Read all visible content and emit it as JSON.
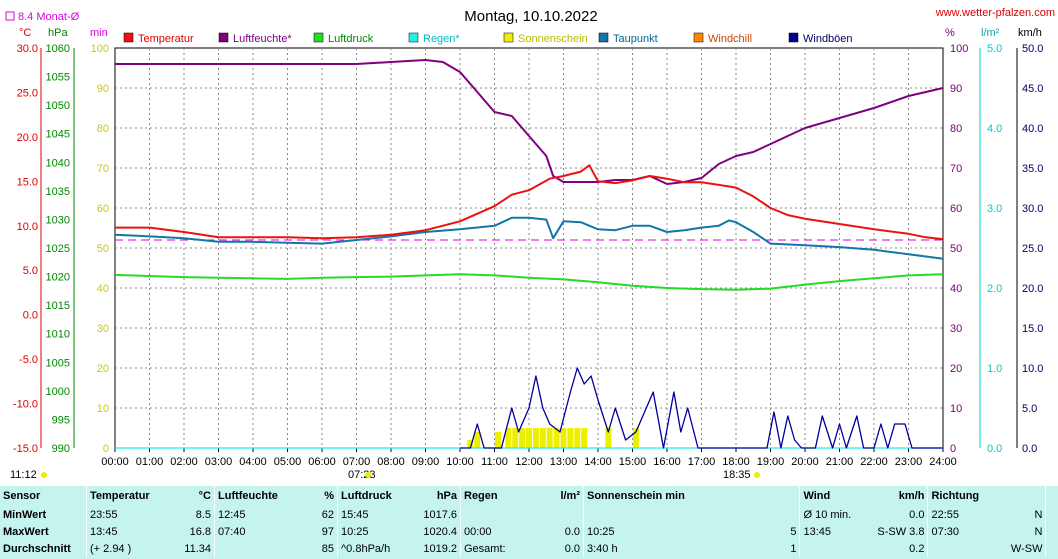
{
  "title": "Montag, 10.10.2022",
  "site": "www.wetter-pfalzen.com",
  "monthavg": "8.4 Monat-Ø",
  "units": {
    "c": "°C",
    "hpa": "hPa",
    "min": "min",
    "pct": "%",
    "lm2": "l/m²",
    "kmh": "km/h"
  },
  "sunrise": "07:23",
  "sunset": "18:35",
  "time_left": "11:12",
  "legend": [
    {
      "label": "Temperatur",
      "color": "#ee1111",
      "text_color": "#dd0000"
    },
    {
      "label": "Luftfeuchte*",
      "color": "#800080",
      "text_color": "#800080"
    },
    {
      "label": "Luftdruck",
      "color": "#22dd22",
      "text_color": "#008800"
    },
    {
      "label": "Regen*",
      "color": "#22eeee",
      "text_color": "#00bbbb"
    },
    {
      "label": "Sonnenschein",
      "color": "#eeee00",
      "text_color": "#bbbb00"
    },
    {
      "label": "Taupunkt",
      "color": "#1177aa",
      "text_color": "#006699"
    },
    {
      "label": "Windchill",
      "color": "#ff8800",
      "text_color": "#cc4400"
    },
    {
      "label": "Windböen",
      "color": "#000099",
      "text_color": "#000066"
    }
  ],
  "axes": {
    "temp": {
      "ticks": [
        "30.0",
        "25.0",
        "20.0",
        "15.0",
        "10.0",
        "5.0",
        "0.0",
        "-5.0",
        "-10.0",
        "-15.0"
      ],
      "min": -15,
      "max": 30,
      "color": "#dd0000"
    },
    "pressure": {
      "ticks": [
        "1060",
        "1055",
        "1050",
        "1045",
        "1040",
        "1035",
        "1030",
        "1025",
        "1020",
        "1015",
        "1010",
        "1005",
        "1000",
        "995",
        "990"
      ],
      "min": 990,
      "max": 1060,
      "color": "#008800"
    },
    "sun": {
      "ticks": [
        "100",
        "90",
        "80",
        "70",
        "60",
        "50",
        "40",
        "30",
        "20",
        "10",
        "0"
      ],
      "min": 0,
      "max": 100,
      "color": "#cccc00"
    },
    "humidity": {
      "ticks": [
        "100",
        "90",
        "80",
        "70",
        "60",
        "50",
        "40",
        "30",
        "20",
        "10",
        "0"
      ],
      "min": 0,
      "max": 100,
      "color": "#800080"
    },
    "rain": {
      "ticks": [
        "5.0",
        "4.0",
        "3.0",
        "2.0",
        "1.0",
        "0.0"
      ],
      "min": 0,
      "max": 5,
      "color": "#00cccc"
    },
    "wind": {
      "ticks": [
        "50.0",
        "45.0",
        "40.0",
        "35.0",
        "30.0",
        "25.0",
        "20.0",
        "15.0",
        "10.0",
        "5.0",
        "0.0"
      ],
      "min": 0,
      "max": 50,
      "color": "#000066"
    },
    "x_ticks": [
      "00:00",
      "01:00",
      "02:00",
      "03:00",
      "04:00",
      "05:00",
      "06:00",
      "07:00",
      "08:00",
      "09:00",
      "10:00",
      "11:00",
      "12:00",
      "13:00",
      "14:00",
      "15:00",
      "16:00",
      "17:00",
      "18:00",
      "19:00",
      "20:00",
      "21:00",
      "22:00",
      "23:00",
      "24:00"
    ]
  },
  "chart_data": {
    "type": "line",
    "title": "Montag, 10.10.2022",
    "x_unit": "hour of day",
    "xlim": [
      0,
      24
    ],
    "monthly_avg_temp": 8.4,
    "series": [
      {
        "name": "Temperatur",
        "axis": "temp",
        "points": [
          [
            0,
            9.8
          ],
          [
            1,
            9.8
          ],
          [
            2,
            9.3
          ],
          [
            3,
            8.7
          ],
          [
            4,
            8.7
          ],
          [
            5,
            8.7
          ],
          [
            6,
            8.6
          ],
          [
            7,
            8.7
          ],
          [
            8,
            9.0
          ],
          [
            9,
            9.5
          ],
          [
            10,
            10.5
          ],
          [
            11,
            12.2
          ],
          [
            11.5,
            13.5
          ],
          [
            12,
            14
          ],
          [
            12.6,
            15.3
          ],
          [
            13,
            15.6
          ],
          [
            13.5,
            16.1
          ],
          [
            13.75,
            16.8
          ],
          [
            14,
            15.0
          ],
          [
            14.5,
            14.8
          ],
          [
            15,
            15.1
          ],
          [
            15.5,
            15.6
          ],
          [
            16,
            15.3
          ],
          [
            16.5,
            14.9
          ],
          [
            17,
            14.9
          ],
          [
            17.5,
            14.6
          ],
          [
            18,
            14.3
          ],
          [
            18.5,
            13.3
          ],
          [
            19,
            12.0
          ],
          [
            19.5,
            11.2
          ],
          [
            20,
            10.8
          ],
          [
            21,
            10.2
          ],
          [
            22,
            9.6
          ],
          [
            23,
            9.1
          ],
          [
            23.5,
            8.7
          ],
          [
            24,
            8.5
          ]
        ]
      },
      {
        "name": "Taupunkt",
        "axis": "temp",
        "points": [
          [
            0,
            9.0
          ],
          [
            1,
            8.8
          ],
          [
            2,
            8.6
          ],
          [
            3,
            8.2
          ],
          [
            4,
            8.2
          ],
          [
            5,
            8.1
          ],
          [
            6,
            8.0
          ],
          [
            7,
            8.4
          ],
          [
            8,
            8.8
          ],
          [
            9,
            9.3
          ],
          [
            10,
            9.6
          ],
          [
            11,
            10.0
          ],
          [
            11.5,
            10.9
          ],
          [
            12,
            10.9
          ],
          [
            12.5,
            10.7
          ],
          [
            12.7,
            8.6
          ],
          [
            13,
            10.5
          ],
          [
            13.5,
            10.4
          ],
          [
            14,
            9.6
          ],
          [
            14.5,
            9.5
          ],
          [
            15,
            10.0
          ],
          [
            15.5,
            10.0
          ],
          [
            16,
            9.3
          ],
          [
            16.5,
            9.5
          ],
          [
            17,
            9.8
          ],
          [
            17.5,
            10.0
          ],
          [
            17.8,
            10.6
          ],
          [
            18,
            10.4
          ],
          [
            18.5,
            9.3
          ],
          [
            19,
            8.0
          ],
          [
            20,
            7.8
          ],
          [
            21,
            7.6
          ],
          [
            22,
            7.3
          ],
          [
            23,
            6.8
          ],
          [
            24,
            6.3
          ]
        ]
      },
      {
        "name": "Luftfeuchte*",
        "axis": "humidity",
        "points": [
          [
            0,
            96
          ],
          [
            2,
            96
          ],
          [
            4,
            96
          ],
          [
            6,
            96
          ],
          [
            7,
            96
          ],
          [
            8,
            96.5
          ],
          [
            9,
            97
          ],
          [
            9.5,
            96.5
          ],
          [
            10,
            94
          ],
          [
            10.5,
            89
          ],
          [
            11,
            84
          ],
          [
            11.5,
            83
          ],
          [
            12,
            78
          ],
          [
            12.5,
            73
          ],
          [
            12.7,
            68
          ],
          [
            13,
            66.5
          ],
          [
            13.5,
            66.5
          ],
          [
            14,
            66.5
          ],
          [
            14.5,
            67
          ],
          [
            15,
            67
          ],
          [
            15.5,
            68
          ],
          [
            16,
            66
          ],
          [
            16.5,
            66.5
          ],
          [
            17,
            67.5
          ],
          [
            17.5,
            71
          ],
          [
            18,
            73
          ],
          [
            18.5,
            74
          ],
          [
            19,
            76
          ],
          [
            20,
            80
          ],
          [
            21,
            82.5
          ],
          [
            22,
            85
          ],
          [
            23,
            88
          ],
          [
            23.5,
            89
          ],
          [
            24,
            90
          ]
        ]
      },
      {
        "name": "Luftdruck",
        "axis": "pressure",
        "points": [
          [
            0,
            1020.3
          ],
          [
            1,
            1020.1
          ],
          [
            2,
            1019.9
          ],
          [
            3,
            1019.8
          ],
          [
            4,
            1019.7
          ],
          [
            5,
            1019.6
          ],
          [
            6,
            1019.8
          ],
          [
            7,
            1019.9
          ],
          [
            8,
            1020.0
          ],
          [
            9,
            1020.2
          ],
          [
            10,
            1020.4
          ],
          [
            11,
            1020.2
          ],
          [
            12,
            1019.8
          ],
          [
            13,
            1019.5
          ],
          [
            14,
            1019.0
          ],
          [
            15,
            1018.4
          ],
          [
            16,
            1018.0
          ],
          [
            17,
            1017.8
          ],
          [
            18,
            1017.7
          ],
          [
            19,
            1017.9
          ],
          [
            20,
            1018.6
          ],
          [
            21,
            1019.2
          ],
          [
            22,
            1019.7
          ],
          [
            23,
            1020.2
          ],
          [
            24,
            1020.4
          ]
        ]
      },
      {
        "name": "Sonnenschein",
        "axis": "sun",
        "type": "bar",
        "points": [
          [
            10.3,
            2
          ],
          [
            10.5,
            4
          ],
          [
            11.1,
            4
          ],
          [
            11.4,
            5
          ],
          [
            11.6,
            5
          ],
          [
            11.8,
            5
          ],
          [
            12.0,
            5
          ],
          [
            12.2,
            5
          ],
          [
            12.4,
            5
          ],
          [
            12.6,
            5
          ],
          [
            12.8,
            5
          ],
          [
            13.0,
            5
          ],
          [
            13.2,
            5
          ],
          [
            13.4,
            5
          ],
          [
            13.6,
            5
          ],
          [
            14.3,
            5
          ],
          [
            15.1,
            5
          ]
        ]
      },
      {
        "name": "Windböen",
        "axis": "wind",
        "points": [
          [
            10,
            0
          ],
          [
            10.3,
            0
          ],
          [
            10.5,
            3
          ],
          [
            10.7,
            0
          ],
          [
            11.2,
            0
          ],
          [
            11.5,
            5
          ],
          [
            11.7,
            2
          ],
          [
            12.0,
            5
          ],
          [
            12.2,
            9
          ],
          [
            12.4,
            5
          ],
          [
            12.6,
            3
          ],
          [
            12.9,
            2
          ],
          [
            13.2,
            7
          ],
          [
            13.4,
            10
          ],
          [
            13.6,
            8
          ],
          [
            13.8,
            9
          ],
          [
            14.0,
            6
          ],
          [
            14.3,
            2
          ],
          [
            14.5,
            5
          ],
          [
            14.8,
            1
          ],
          [
            15.1,
            2
          ],
          [
            15.4,
            5
          ],
          [
            15.6,
            7
          ],
          [
            15.9,
            0
          ],
          [
            16.2,
            7
          ],
          [
            16.4,
            2
          ],
          [
            16.6,
            5
          ],
          [
            16.9,
            0
          ],
          [
            17.2,
            0
          ],
          [
            18.9,
            0
          ],
          [
            19.1,
            4.5
          ],
          [
            19.3,
            0
          ],
          [
            19.5,
            4
          ],
          [
            19.7,
            1
          ],
          [
            19.9,
            0
          ],
          [
            20.3,
            0
          ],
          [
            20.5,
            4
          ],
          [
            20.8,
            0
          ],
          [
            21.0,
            3
          ],
          [
            21.2,
            0
          ],
          [
            21.5,
            4
          ],
          [
            21.7,
            0
          ],
          [
            22.0,
            0
          ],
          [
            22.2,
            3
          ],
          [
            22.4,
            0
          ],
          [
            22.6,
            3
          ],
          [
            22.9,
            3
          ],
          [
            23.1,
            0
          ],
          [
            24,
            0
          ]
        ]
      },
      {
        "name": "Regen*",
        "axis": "rain",
        "points": [
          [
            0,
            0
          ],
          [
            24,
            0
          ]
        ]
      }
    ]
  },
  "stats": {
    "headers": {
      "sensor": "Sensor",
      "temp": "Temperatur",
      "temp_u": "°C",
      "hum": "Luftfeuchte",
      "hum_u": "%",
      "press": "Luftdruck",
      "press_u": "hPa",
      "rain": "Regen",
      "rain_u": "l/m²",
      "sun": "Sonnenschein min",
      "wind": "Wind",
      "wind_u": "km/h",
      "dir": "Richtung"
    },
    "rows": [
      {
        "label": "MinWert",
        "temp_t": "23:55",
        "temp_v": "8.5",
        "hum_t": "12:45",
        "hum_v": "62",
        "press_t": "15:45",
        "press_v": "1017.6",
        "rain_t": "",
        "rain_v": "",
        "sun_t": "",
        "sun_v": "",
        "wind_t": "Ø 10 min.",
        "wind_v": "0.0",
        "dir_t": "22:55",
        "dir_v": "N"
      },
      {
        "label": "MaxWert",
        "temp_t": "13:45",
        "temp_v": "16.8",
        "hum_t": "07:40",
        "hum_v": "97",
        "press_t": "10:25",
        "press_v": "1020.4",
        "rain_t": "00:00",
        "rain_v": "0.0",
        "sun_t": "10:25",
        "sun_v": "5",
        "wind_t": "13:45",
        "wind_v": "S-SW 3.8",
        "dir_t": "07:30",
        "dir_v": "N"
      },
      {
        "label": "Durchschnitt",
        "temp_t": "(+ 2.94 )",
        "temp_v": "11.34",
        "hum_t": "",
        "hum_v": "85",
        "press_t": "^0.8hPa/h",
        "press_v": "1019.2",
        "rain_t": "Gesamt:",
        "rain_v": "0.0",
        "sun_t": "3:40 h",
        "sun_v": "1",
        "wind_t": "",
        "wind_v": "0.2",
        "dir_t": "",
        "dir_v": "W-SW"
      }
    ]
  }
}
